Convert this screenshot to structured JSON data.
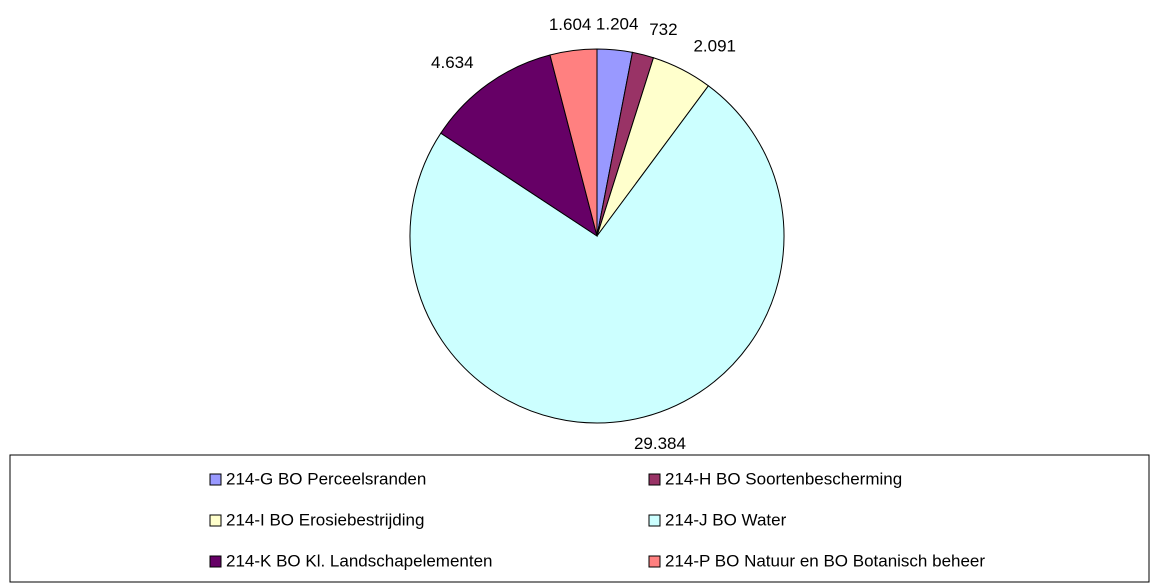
{
  "chart_data": {
    "type": "pie",
    "categories": [
      "214-G BO Perceelsranden",
      "214-H BO Soortenbescherming",
      "214-I BO Erosiebestrijding",
      "214-J BO Water",
      "214-K BO Kl. Landschapelementen",
      "214-P BO Natuur en BO Botanisch beheer"
    ],
    "values": [
      1204,
      732,
      2091,
      29384,
      4634,
      1604
    ],
    "value_labels": [
      "1.204",
      "732",
      "2.091",
      "29.384",
      "4.634",
      "1.604"
    ],
    "colors": [
      "#9999ff",
      "#993366",
      "#ffffcc",
      "#ccffff",
      "#660066",
      "#ff8080"
    ],
    "legend": "bottom"
  }
}
